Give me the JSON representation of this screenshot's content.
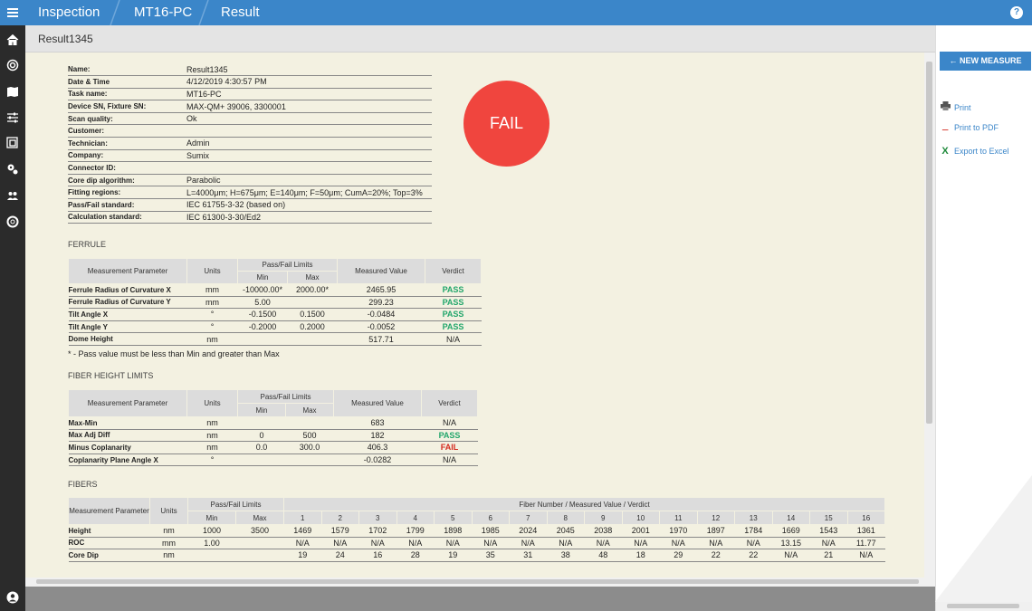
{
  "breadcrumb": [
    "Inspection",
    "MT16-PC",
    "Result"
  ],
  "header_title": "Result1345",
  "info": [
    {
      "k": "Name:",
      "v": "Result1345"
    },
    {
      "k": "Date & Time",
      "v": "4/12/2019 4:30:57 PM"
    },
    {
      "k": "Task name:",
      "v": "MT16-PC"
    },
    {
      "k": "Device SN, Fixture SN:",
      "v": "MAX-QM+ 39006, 3300001"
    },
    {
      "k": "Scan quality:",
      "v": "Ok"
    },
    {
      "k": "Customer:",
      "v": ""
    },
    {
      "k": "Technician:",
      "v": "Admin"
    },
    {
      "k": "Company:",
      "v": "Sumix"
    },
    {
      "k": "Connector ID:",
      "v": ""
    },
    {
      "k": "Core dip algorithm:",
      "v": "Parabolic"
    },
    {
      "k": "Fitting regions:",
      "v": "L=4000μm; H=675μm; E=140μm; F=50μm; CumA=20%; Top=3%"
    },
    {
      "k": "Pass/Fail standard:",
      "v": "IEC 61755-3-32 (based on)"
    },
    {
      "k": "Calculation standard:",
      "v": "IEC 61300-3-30/Ed2"
    }
  ],
  "overall_verdict": "FAIL",
  "headers": {
    "param": "Measurement Parameter",
    "units": "Units",
    "limits": "Pass/Fail Limits",
    "min": "Min",
    "max": "Max",
    "measured": "Measured Value",
    "verdict": "Verdict",
    "fiber_group": "Fiber Number / Measured Value / Verdict"
  },
  "ferrule": {
    "title": "FERRULE",
    "rows": [
      {
        "param": "Ferrule Radius of Curvature X",
        "units": "mm",
        "min": "-10000.00*",
        "max": "2000.00*",
        "value": "2465.95",
        "verdict": "PASS"
      },
      {
        "param": "Ferrule Radius of Curvature Y",
        "units": "mm",
        "min": "5.00",
        "max": "",
        "value": "299.23",
        "verdict": "PASS"
      },
      {
        "param": "Tilt Angle X",
        "units": "°",
        "min": "-0.1500",
        "max": "0.1500",
        "value": "-0.0484",
        "verdict": "PASS"
      },
      {
        "param": "Tilt Angle Y",
        "units": "°",
        "min": "-0.2000",
        "max": "0.2000",
        "value": "-0.0052",
        "verdict": "PASS"
      },
      {
        "param": "Dome Height",
        "units": "nm",
        "min": "",
        "max": "",
        "value": "517.71",
        "verdict": "N/A"
      }
    ],
    "note": "* - Pass value must be less than Min and greater than Max"
  },
  "fiber_height": {
    "title": "FIBER HEIGHT LIMITS",
    "rows": [
      {
        "param": "Max-Min",
        "units": "nm",
        "min": "",
        "max": "",
        "value": "683",
        "verdict": "N/A"
      },
      {
        "param": "Max Adj Diff",
        "units": "nm",
        "min": "0",
        "max": "500",
        "value": "182",
        "verdict": "PASS"
      },
      {
        "param": "Minus Coplanarity",
        "units": "nm",
        "min": "0.0",
        "max": "300.0",
        "value": "406.3",
        "verdict": "FAIL"
      },
      {
        "param": "Coplanarity Plane Angle X",
        "units": "°",
        "min": "",
        "max": "",
        "value": "-0.0282",
        "verdict": "N/A"
      }
    ]
  },
  "fibers": {
    "title": "FIBERS",
    "numbers": [
      "1",
      "2",
      "3",
      "4",
      "5",
      "6",
      "7",
      "8",
      "9",
      "10",
      "11",
      "12",
      "13",
      "14",
      "15",
      "16"
    ],
    "rows": [
      {
        "param": "Height",
        "units": "nm",
        "min": "1000",
        "max": "3500",
        "values": [
          "1469",
          "1579",
          "1702",
          "1799",
          "1898",
          "1985",
          "2024",
          "2045",
          "2038",
          "2001",
          "1970",
          "1897",
          "1784",
          "1669",
          "1543",
          "1361"
        ]
      },
      {
        "param": "ROC",
        "units": "mm",
        "min": "1.00",
        "max": "",
        "values": [
          "N/A",
          "N/A",
          "N/A",
          "N/A",
          "N/A",
          "N/A",
          "N/A",
          "N/A",
          "N/A",
          "N/A",
          "N/A",
          "N/A",
          "N/A",
          "13.15",
          "N/A",
          "11.77"
        ]
      },
      {
        "param": "Core Dip",
        "units": "nm",
        "min": "",
        "max": "",
        "values": [
          "19",
          "24",
          "16",
          "28",
          "19",
          "35",
          "31",
          "38",
          "48",
          "18",
          "29",
          "22",
          "22",
          "N/A",
          "21",
          "N/A"
        ]
      }
    ]
  },
  "right_panel": {
    "new_measure": "NEW MEASURE",
    "actions": [
      {
        "label": "Print",
        "icon": "printer-icon"
      },
      {
        "label": "Print to PDF",
        "icon": "pdf-icon"
      },
      {
        "label": "Export to Excel",
        "icon": "excel-icon"
      }
    ]
  }
}
